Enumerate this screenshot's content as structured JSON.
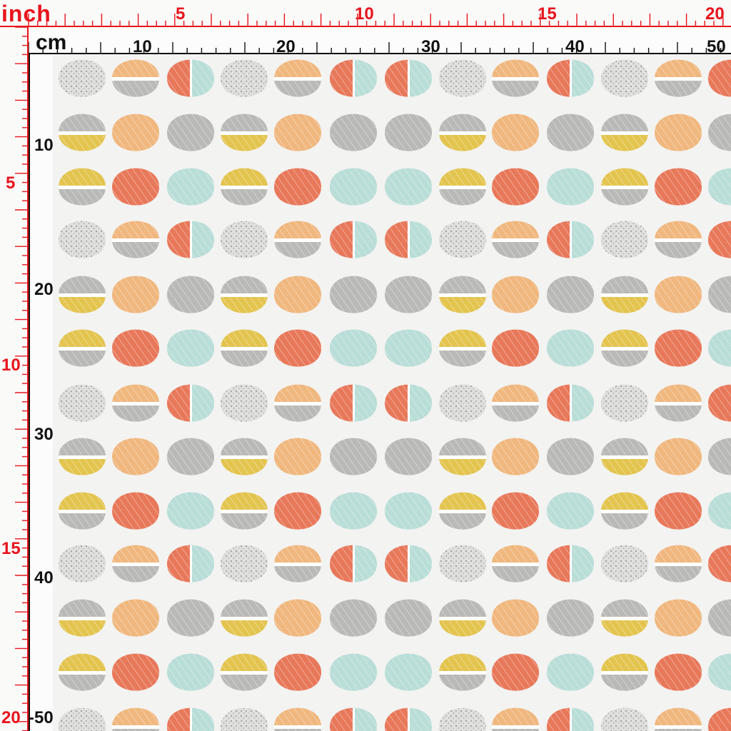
{
  "rulers": {
    "inch_unit": "inch",
    "cm_unit": "cm",
    "inch_labels_top": [
      "5",
      "10",
      "15",
      "20"
    ],
    "cm_labels_top": [
      "10",
      "20",
      "30",
      "40",
      "50"
    ],
    "inch_labels_left": [
      "5",
      "10",
      "15",
      "20"
    ],
    "cm_labels_left": [
      "10",
      "20",
      "30",
      "40",
      "-50"
    ]
  },
  "pattern": {
    "name": "abstract dots",
    "colors": {
      "background": "#f3f3f1",
      "grey": "#b9b9b7",
      "orange": "#f0b77e",
      "coral": "#e8785a",
      "mint": "#b9ddd7",
      "mustard": "#e3c44e",
      "ruler_red": "#e8141c"
    }
  }
}
